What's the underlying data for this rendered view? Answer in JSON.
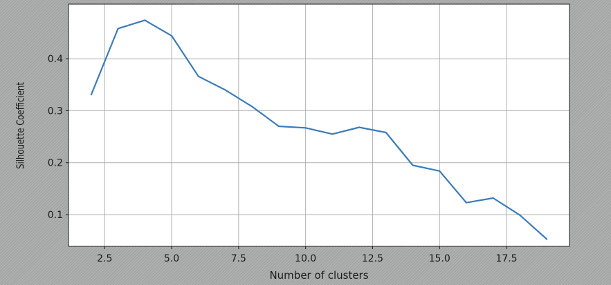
{
  "chart_data": {
    "type": "line",
    "title": "",
    "xlabel": "Number of clusters",
    "ylabel": "Silhouette Coefficient",
    "xlim": [
      1.15,
      19.85
    ],
    "ylim": [
      0.039,
      0.505
    ],
    "xticks": [
      2.5,
      5.0,
      7.5,
      10.0,
      12.5,
      15.0,
      17.5
    ],
    "xtick_labels": [
      "2.5",
      "5.0",
      "7.5",
      "10.0",
      "12.5",
      "15.0",
      "17.5"
    ],
    "yticks": [
      0.1,
      0.2,
      0.3,
      0.4
    ],
    "ytick_labels": [
      "0.1",
      "0.2",
      "0.3",
      "0.4"
    ],
    "grid": true,
    "line_color": "#3b7bb8",
    "plot_background": "#ffffff",
    "series": [
      {
        "x": [
          2,
          3,
          4,
          5,
          6,
          7,
          8,
          9,
          10,
          11,
          12,
          13,
          14,
          15,
          16,
          17,
          18,
          19
        ],
        "y": [
          0.331,
          0.458,
          0.474,
          0.444,
          0.366,
          0.34,
          0.308,
          0.27,
          0.267,
          0.255,
          0.268,
          0.258,
          0.195,
          0.184,
          0.123,
          0.132,
          0.099,
          0.053
        ]
      }
    ]
  }
}
